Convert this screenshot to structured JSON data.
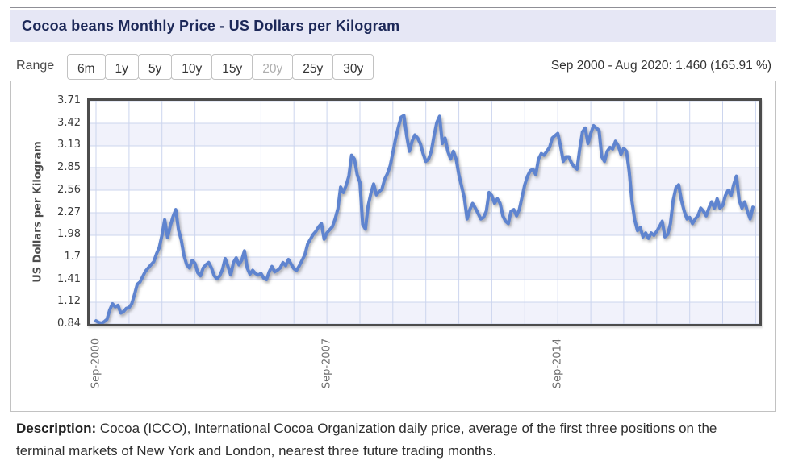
{
  "header": {
    "title": "Cocoa beans Monthly Price - US Dollars per Kilogram"
  },
  "range_bar": {
    "label": "Range",
    "options": [
      {
        "label": "6m",
        "selected": false
      },
      {
        "label": "1y",
        "selected": false
      },
      {
        "label": "5y",
        "selected": false
      },
      {
        "label": "10y",
        "selected": false
      },
      {
        "label": "15y",
        "selected": false
      },
      {
        "label": "20y",
        "selected": true
      },
      {
        "label": "25y",
        "selected": false
      },
      {
        "label": "30y",
        "selected": false
      }
    ],
    "period_summary": "Sep 2000 - Aug 2020: 1.460 (165.91 %)"
  },
  "description": {
    "label": "Description:",
    "text": " Cocoa (ICCO), International Cocoa Organization daily price, average of the first three positions on the terminal markets of New York and London, nearest three future trading months."
  },
  "chart_data": {
    "type": "line",
    "title": "Cocoa beans Monthly Price - US Dollars per Kilogram",
    "xlabel": "",
    "ylabel": "US Dollars per Kilogram",
    "ylim": [
      0.84,
      3.71
    ],
    "ytick_labels": [
      "3.71",
      "3.42",
      "3.13",
      "2.85",
      "2.56",
      "2.27",
      "1.98",
      "1.7",
      "1.41",
      "1.12",
      "0.84"
    ],
    "xticks": [
      {
        "label": "Sep-2000",
        "month_index": 0
      },
      {
        "label": "Sep-2007",
        "month_index": 84
      },
      {
        "label": "Sep-2014",
        "month_index": 168
      }
    ],
    "grid": true,
    "legend": "none",
    "band_color": "#f1f2fb",
    "grid_color": "#ccd5ee",
    "line_color": "#5f84cf",
    "x_months_per_gridline": 12,
    "series": [
      {
        "name": "Cocoa beans price",
        "unit": "US Dollars per Kilogram",
        "start_month": "Sep-2000",
        "end_month": "Aug-2020",
        "values": [
          0.88,
          0.86,
          0.85,
          0.87,
          0.9,
          1.02,
          1.1,
          1.06,
          1.08,
          0.98,
          1.0,
          1.04,
          1.05,
          1.1,
          1.22,
          1.35,
          1.38,
          1.45,
          1.52,
          1.56,
          1.6,
          1.64,
          1.74,
          1.82,
          1.98,
          2.18,
          1.95,
          2.1,
          2.22,
          2.31,
          2.05,
          1.92,
          1.72,
          1.6,
          1.56,
          1.66,
          1.62,
          1.5,
          1.46,
          1.56,
          1.6,
          1.63,
          1.56,
          1.46,
          1.42,
          1.46,
          1.54,
          1.68,
          1.58,
          1.47,
          1.63,
          1.69,
          1.6,
          1.66,
          1.78,
          1.56,
          1.48,
          1.53,
          1.49,
          1.47,
          1.49,
          1.43,
          1.41,
          1.51,
          1.58,
          1.51,
          1.53,
          1.56,
          1.63,
          1.59,
          1.67,
          1.61,
          1.55,
          1.53,
          1.59,
          1.66,
          1.73,
          1.87,
          1.93,
          1.99,
          2.03,
          2.09,
          2.13,
          1.93,
          2.01,
          2.05,
          2.09,
          2.19,
          2.32,
          2.6,
          2.53,
          2.62,
          2.74,
          3.01,
          2.96,
          2.76,
          2.66,
          2.12,
          2.06,
          2.36,
          2.52,
          2.64,
          2.5,
          2.54,
          2.57,
          2.7,
          2.77,
          2.87,
          3.04,
          3.22,
          3.37,
          3.5,
          3.52,
          3.26,
          3.06,
          3.19,
          3.27,
          3.23,
          3.16,
          3.03,
          2.93,
          2.96,
          3.06,
          3.26,
          3.43,
          3.51,
          3.16,
          3.23,
          3.06,
          2.96,
          3.06,
          2.96,
          2.76,
          2.61,
          2.46,
          2.19,
          2.31,
          2.39,
          2.33,
          2.26,
          2.19,
          2.21,
          2.29,
          2.53,
          2.49,
          2.39,
          2.45,
          2.39,
          2.23,
          2.16,
          2.13,
          2.29,
          2.31,
          2.23,
          2.31,
          2.47,
          2.63,
          2.74,
          2.81,
          2.83,
          2.76,
          2.96,
          3.03,
          3.01,
          3.06,
          3.11,
          3.23,
          3.26,
          3.29,
          3.13,
          2.93,
          2.99,
          2.99,
          2.91,
          2.86,
          2.83,
          3.09,
          3.31,
          3.36,
          3.16,
          3.29,
          3.39,
          3.36,
          3.33,
          2.99,
          2.93,
          3.06,
          3.11,
          3.09,
          3.19,
          3.13,
          3.02,
          3.1,
          3.06,
          2.8,
          2.42,
          2.18,
          2.04,
          2.08,
          1.96,
          2.01,
          1.94,
          2.01,
          1.98,
          2.03,
          2.09,
          2.16,
          1.96,
          1.99,
          2.13,
          2.43,
          2.59,
          2.63,
          2.43,
          2.29,
          2.19,
          2.21,
          2.13,
          2.19,
          2.23,
          2.33,
          2.29,
          2.23,
          2.33,
          2.41,
          2.33,
          2.45,
          2.33,
          2.36,
          2.49,
          2.56,
          2.49,
          2.63,
          2.74,
          2.43,
          2.33,
          2.41,
          2.29,
          2.19,
          2.34
        ]
      }
    ]
  }
}
